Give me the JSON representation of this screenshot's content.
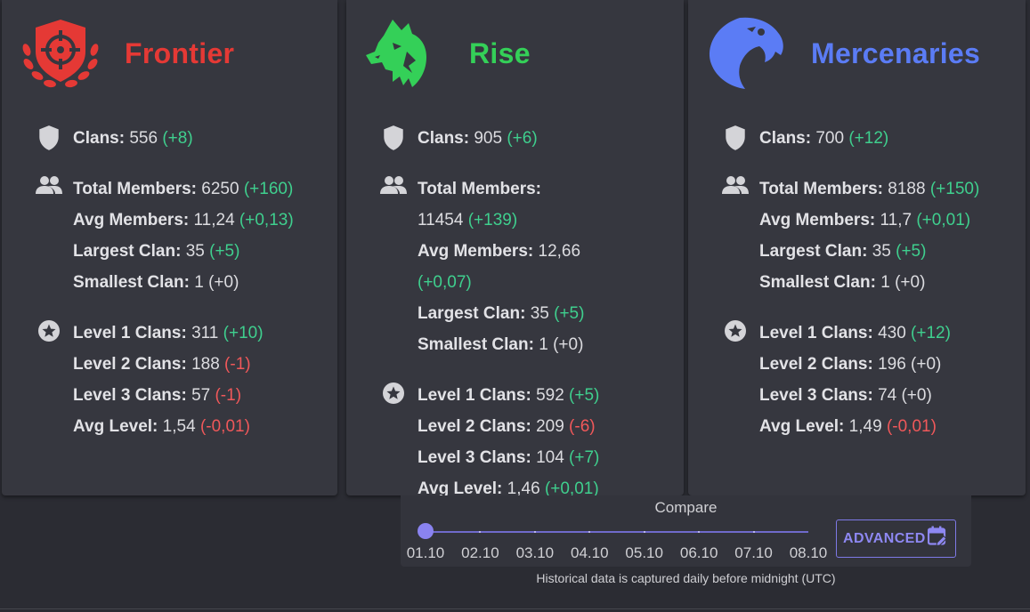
{
  "factions": [
    {
      "id": "frontier",
      "name": "Frontier",
      "color": "#e53935",
      "logo_icon": "crosshair-shield-icon",
      "clans": {
        "label": "Clans:",
        "value": "556",
        "delta": "(+8)",
        "trend": "pos"
      },
      "members": [
        {
          "label": "Total Members:",
          "value": "6250",
          "delta": "(+160)",
          "trend": "pos"
        },
        {
          "label": "Avg Members:",
          "value": "11,24",
          "delta": "(+0,13)",
          "trend": "pos"
        },
        {
          "label": "Largest Clan:",
          "value": "35",
          "delta": "(+5)",
          "trend": "pos"
        },
        {
          "label": "Smallest Clan:",
          "value": "1",
          "delta": "(+0)",
          "trend": "neu"
        }
      ],
      "levels": [
        {
          "label": "Level 1 Clans:",
          "value": "311",
          "delta": "(+10)",
          "trend": "pos"
        },
        {
          "label": "Level 2 Clans:",
          "value": "188",
          "delta": "(-1)",
          "trend": "neg"
        },
        {
          "label": "Level 3 Clans:",
          "value": "57",
          "delta": "(-1)",
          "trend": "neg"
        },
        {
          "label": "Avg Level:",
          "value": "1,54",
          "delta": "(-0,01)",
          "trend": "neg"
        }
      ]
    },
    {
      "id": "rise",
      "name": "Rise",
      "color": "#34d058",
      "logo_icon": "wolf-head-icon",
      "clans": {
        "label": "Clans:",
        "value": "905",
        "delta": "(+6)",
        "trend": "pos"
      },
      "members": [
        {
          "label": "Total Members:",
          "value": "11454",
          "delta": "(+139)",
          "trend": "pos"
        },
        {
          "label": "Avg Members:",
          "value": "12,66",
          "delta": "(+0,07)",
          "trend": "pos"
        },
        {
          "label": "Largest Clan:",
          "value": "35",
          "delta": "(+5)",
          "trend": "pos"
        },
        {
          "label": "Smallest Clan:",
          "value": "1",
          "delta": "(+0)",
          "trend": "neu"
        }
      ],
      "levels": [
        {
          "label": "Level 1 Clans:",
          "value": "592",
          "delta": "(+5)",
          "trend": "pos"
        },
        {
          "label": "Level 2 Clans:",
          "value": "209",
          "delta": "(-6)",
          "trend": "neg"
        },
        {
          "label": "Level 3 Clans:",
          "value": "104",
          "delta": "(+7)",
          "trend": "pos"
        },
        {
          "label": "Avg Level:",
          "value": "1,46",
          "delta": "(+0,01)",
          "trend": "pos"
        }
      ]
    },
    {
      "id": "mercenaries",
      "name": "Mercenaries",
      "color": "#5b7cf5",
      "logo_icon": "eagle-head-icon",
      "clans": {
        "label": "Clans:",
        "value": "700",
        "delta": "(+12)",
        "trend": "pos"
      },
      "members": [
        {
          "label": "Total Members:",
          "value": "8188",
          "delta": "(+150)",
          "trend": "pos"
        },
        {
          "label": "Avg Members:",
          "value": "11,7",
          "delta": "(+0,01)",
          "trend": "pos"
        },
        {
          "label": "Largest Clan:",
          "value": "35",
          "delta": "(+5)",
          "trend": "pos"
        },
        {
          "label": "Smallest Clan:",
          "value": "1",
          "delta": "(+0)",
          "trend": "neu"
        }
      ],
      "levels": [
        {
          "label": "Level 1 Clans:",
          "value": "430",
          "delta": "(+12)",
          "trend": "pos"
        },
        {
          "label": "Level 2 Clans:",
          "value": "196",
          "delta": "(+0)",
          "trend": "neu"
        },
        {
          "label": "Level 3 Clans:",
          "value": "74",
          "delta": "(+0)",
          "trend": "neu"
        },
        {
          "label": "Avg Level:",
          "value": "1,49",
          "delta": "(-0,01)",
          "trend": "neg"
        }
      ]
    }
  ],
  "compare": {
    "title": "Compare",
    "dates": [
      "01.10",
      "02.10",
      "03.10",
      "04.10",
      "05.10",
      "06.10",
      "07.10",
      "08.10"
    ],
    "selected": "01.10",
    "advanced_label": "ADVANCED",
    "advanced_icon": "calendar-edit-icon",
    "accent": "#8a83f0"
  },
  "footnote": "Historical data is captured daily before midnight (UTC)"
}
